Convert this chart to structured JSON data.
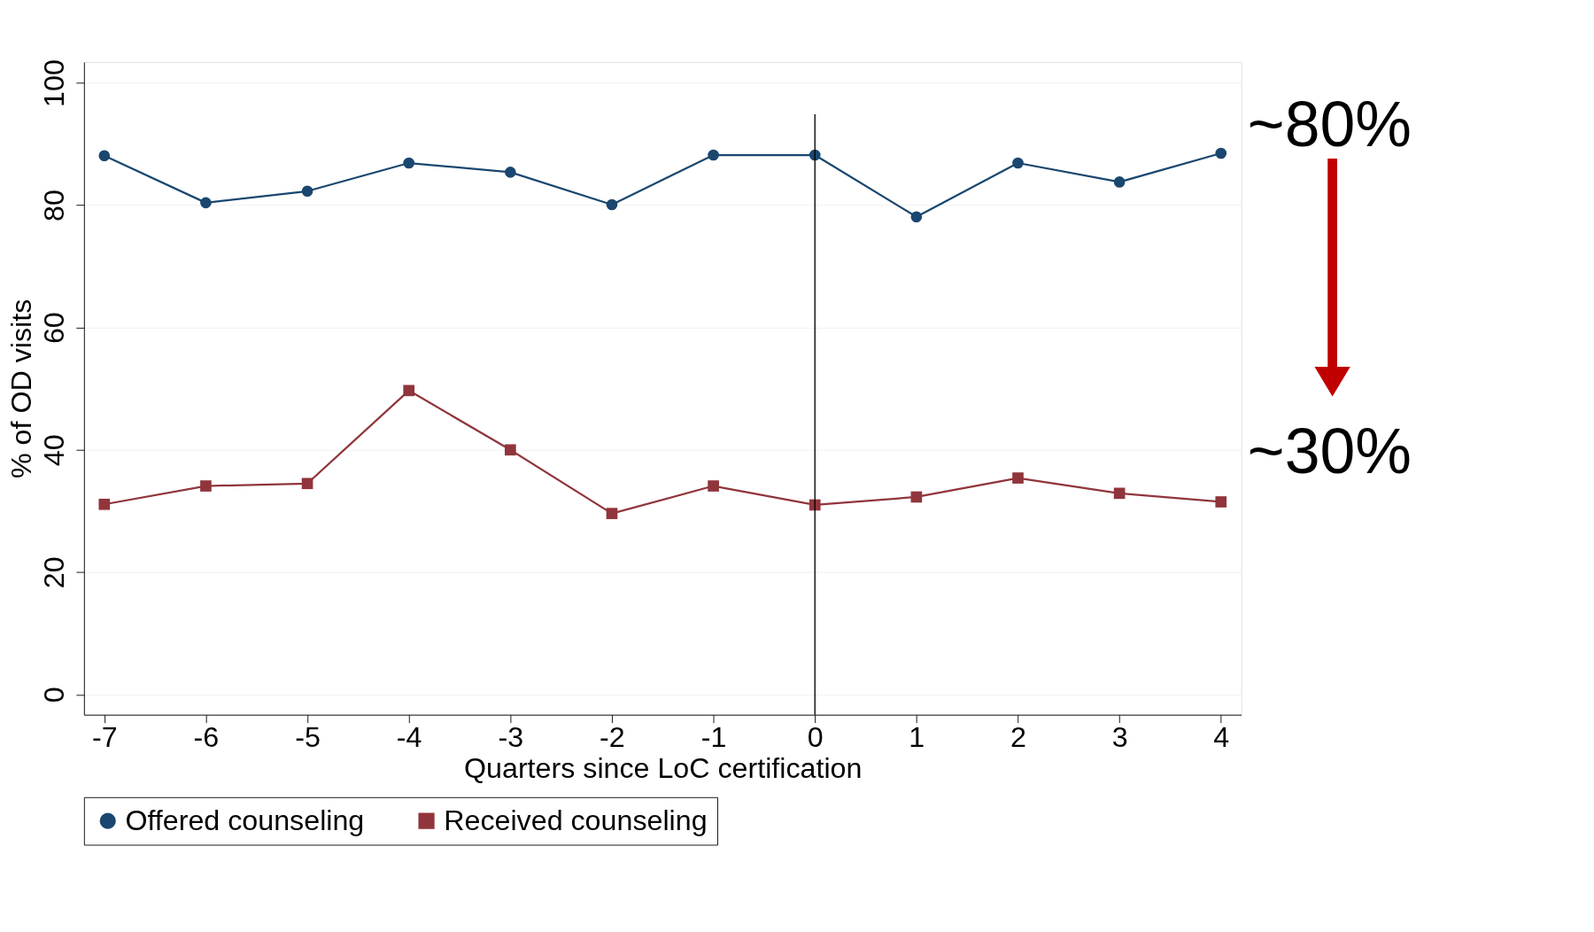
{
  "chart_data": {
    "type": "line",
    "xlabel": "Quarters since LoC certification",
    "ylabel": "% of OD visits",
    "x": [
      -7,
      -6,
      -5,
      -4,
      -3,
      -2,
      -1,
      0,
      1,
      2,
      3,
      4
    ],
    "series": [
      {
        "name": "Offered counseling",
        "color": "#1a476f",
        "marker": "circle",
        "values": [
          88.1,
          80.4,
          82.3,
          86.9,
          85.4,
          80.1,
          88.2,
          88.2,
          78.1,
          86.9,
          83.8,
          88.5
        ]
      },
      {
        "name": "Received counseling",
        "color": "#90353b",
        "marker": "square",
        "values": [
          31.1,
          34.1,
          34.5,
          49.7,
          40.0,
          29.6,
          34.1,
          31.0,
          32.3,
          35.4,
          32.9,
          31.5
        ]
      }
    ],
    "xlim": [
      -7.2,
      4.2
    ],
    "xticks": [
      -7,
      -6,
      -5,
      -4,
      -3,
      -2,
      -1,
      0,
      1,
      2,
      3,
      4
    ],
    "ylim": [
      -3.3,
      103.4
    ],
    "yticks": [
      0,
      20,
      40,
      60,
      80,
      100
    ],
    "ref_lines": [
      {
        "axis": "x",
        "value": 0,
        "color": "#000000"
      }
    ],
    "annotations": [
      "~80%",
      "~30%"
    ],
    "grid": "y",
    "legend": "bottom",
    "line_style": "solid"
  }
}
